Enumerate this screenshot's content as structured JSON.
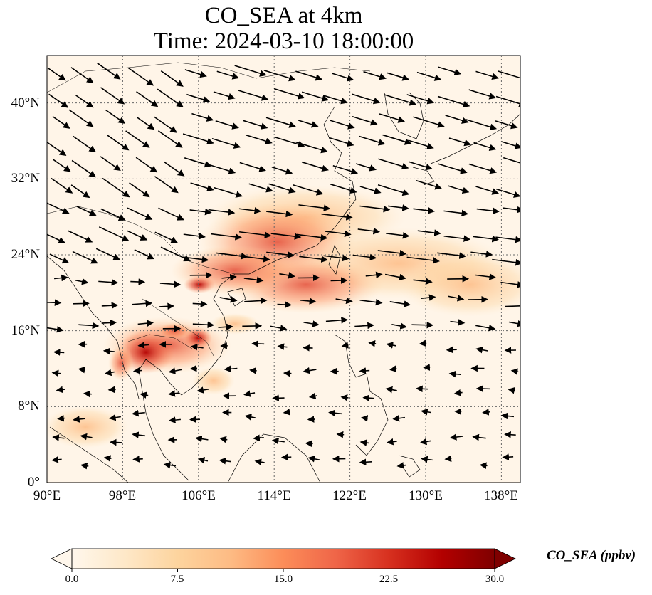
{
  "title": {
    "line1": "CO_SEA at 4km",
    "line2": "Time: 2024-03-10 18:00:00"
  },
  "map": {
    "projection": "PlateCarree",
    "lon_range": [
      90,
      140
    ],
    "lat_range": [
      0,
      45
    ],
    "gridlines": "dotted",
    "x_ticks": [
      "90°E",
      "98°E",
      "106°E",
      "114°E",
      "122°E",
      "130°E",
      "138°E"
    ],
    "y_ticks": [
      "0°",
      "8°N",
      "16°N",
      "24°N",
      "32°N",
      "40°N"
    ],
    "field": "CO_SEA",
    "layers": [
      "coastlines",
      "country borders",
      "wind vectors"
    ]
  },
  "colorbar": {
    "label": "CO_SEA (ppbv)",
    "ticks": [
      "0.0",
      "7.5",
      "15.0",
      "22.5",
      "30.0"
    ],
    "range": [
      0,
      30
    ],
    "extend": "both",
    "colormap": "OrRd",
    "colors": [
      "#fff7ec",
      "#fee8c8",
      "#fdd49e",
      "#fdbb84",
      "#fc8d59",
      "#ef6548",
      "#d7301f",
      "#b30000",
      "#7f0000"
    ]
  }
}
